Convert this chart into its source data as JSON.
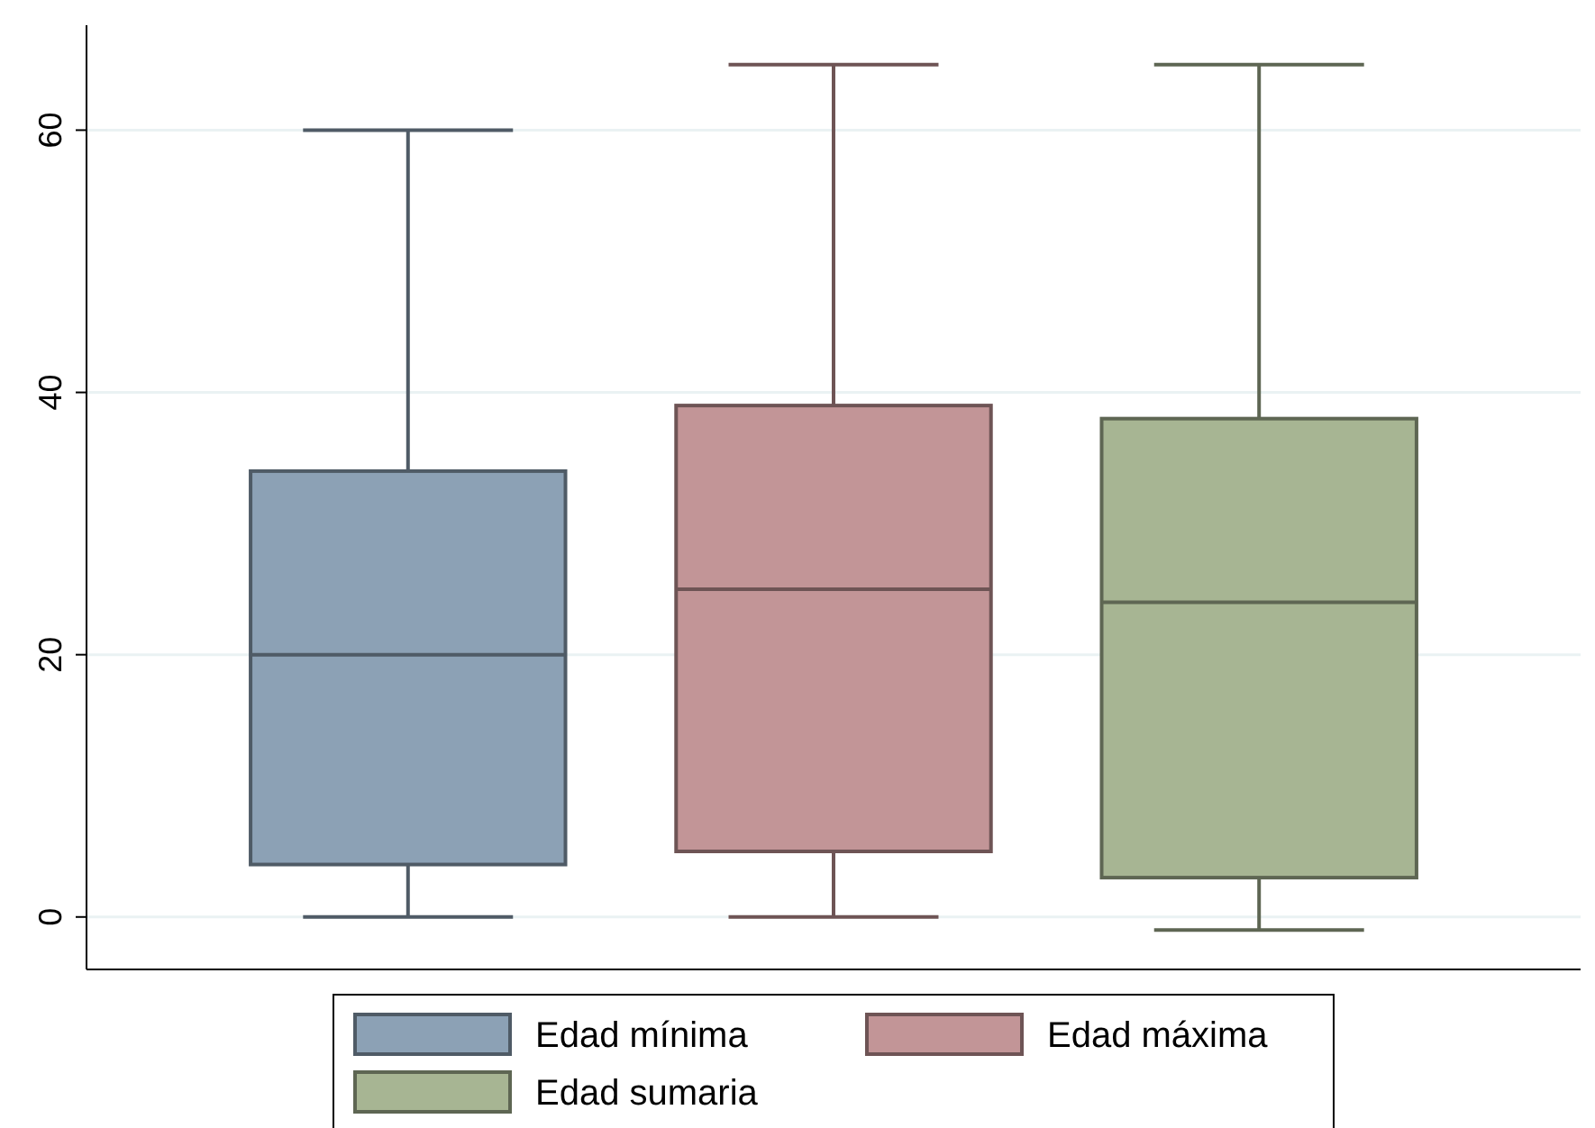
{
  "chart_data": {
    "type": "box",
    "categories": [
      null
    ],
    "series": [
      {
        "name": "Edad mínima",
        "color": "#8ca1b5",
        "boxes": [
          {
            "low": 0,
            "q1": 4,
            "median": 20,
            "q3": 34,
            "high": 60
          }
        ]
      },
      {
        "name": "Edad máxima",
        "color": "#c29597",
        "boxes": [
          {
            "low": 0,
            "q1": 5,
            "median": 25,
            "q3": 39,
            "high": 65
          }
        ]
      },
      {
        "name": "Edad sumaria",
        "color": "#a7b593",
        "boxes": [
          {
            "low": -1,
            "q1": 3,
            "median": 24,
            "q3": 38,
            "high": 65
          }
        ]
      }
    ],
    "ylim": [
      -4,
      68
    ],
    "yticks": [
      0,
      20,
      40,
      60
    ],
    "grid": "y",
    "legend": "bottom"
  }
}
